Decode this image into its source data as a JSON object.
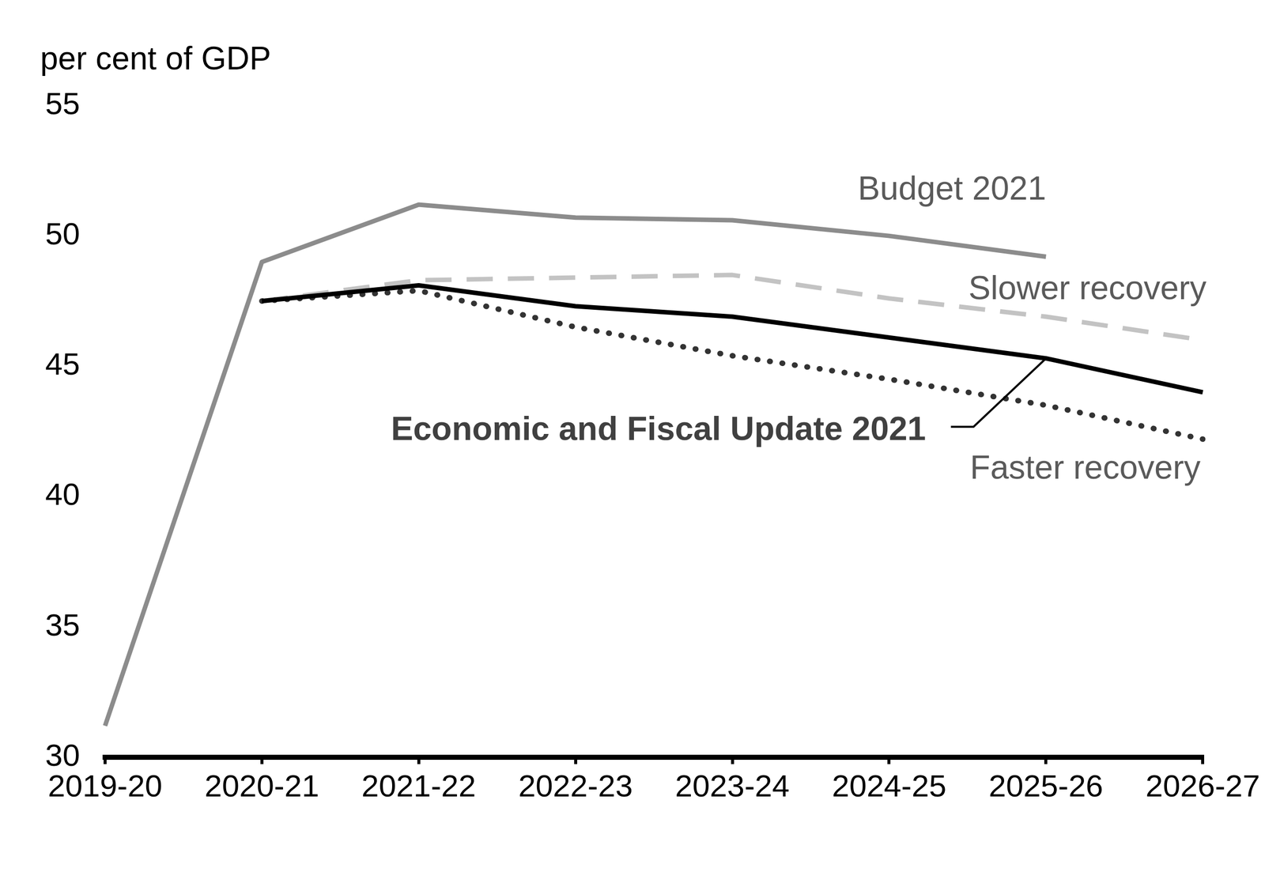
{
  "chart_data": {
    "type": "line",
    "y_label": "per cent of GDP",
    "categories": [
      "2019-20",
      "2020-21",
      "2021-22",
      "2022-23",
      "2023-24",
      "2024-25",
      "2025-26",
      "2026-27"
    ],
    "series": [
      {
        "name": "Budget 2021",
        "color": "#8c8c8c",
        "line_style": "solid",
        "values": [
          31.2,
          49.0,
          51.2,
          50.7,
          50.6,
          50.0,
          49.2,
          null
        ]
      },
      {
        "name": "Slower recovery",
        "color": "#c3c3c3",
        "line_style": "dashed",
        "values": [
          null,
          47.5,
          48.3,
          48.4,
          48.5,
          47.6,
          46.9,
          46.0
        ]
      },
      {
        "name": "Economic and Fiscal Update 2021",
        "color": "#000000",
        "line_style": "solid",
        "values": [
          null,
          47.5,
          48.1,
          47.3,
          46.9,
          46.1,
          45.3,
          44.0
        ]
      },
      {
        "name": "Faster recovery",
        "color": "#333333",
        "line_style": "dotted",
        "values": [
          null,
          47.5,
          47.9,
          46.5,
          45.4,
          44.5,
          43.5,
          42.2
        ]
      }
    ],
    "ylim": [
      30,
      55
    ],
    "yticks": [
      30,
      35,
      40,
      45,
      50,
      55
    ],
    "grid": false,
    "legend": "none"
  }
}
